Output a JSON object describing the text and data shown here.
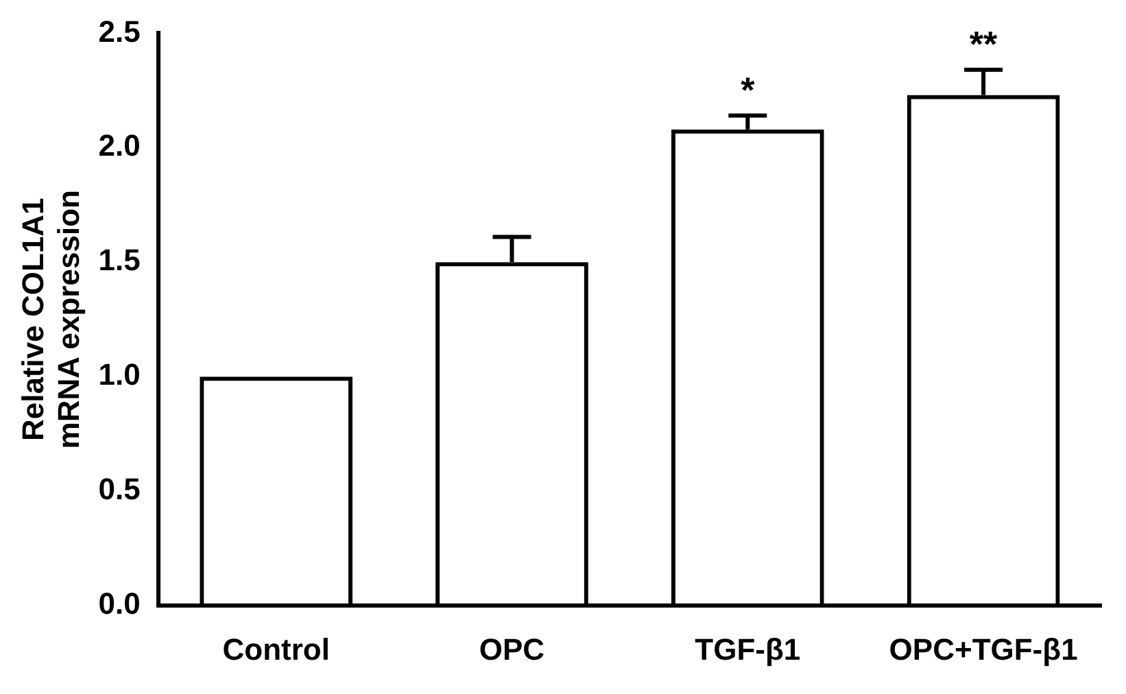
{
  "chart_data": {
    "type": "bar",
    "ylabel": "Relative COL1A1\nmRNA expression",
    "categories": [
      "Control",
      "OPC",
      "TGF-β1",
      "OPC+TGF-β1"
    ],
    "values": [
      1.0,
      1.5,
      2.08,
      2.23
    ],
    "errors": [
      null,
      [
        1.5,
        1.61
      ],
      [
        2.08,
        2.14
      ],
      [
        2.23,
        2.34
      ]
    ],
    "colors": [
      "#000000",
      "#000000",
      "#000000",
      "#000000"
    ],
    "ylim": [
      0,
      2.5
    ],
    "yticks": [
      {
        "value": 0,
        "label": "0.0"
      },
      0.5,
      {
        "value": 1,
        "label": "1.0"
      },
      1.5,
      {
        "value": 2,
        "label": "2.0"
      },
      2.5
    ],
    "grid": false,
    "legend": false,
    "annotations": [
      {
        "text": "*",
        "x": "TGF-β1",
        "y": 2.14
      },
      {
        "text": "**",
        "x": "OPC+TGF-β1",
        "y": 2.34
      }
    ]
  }
}
